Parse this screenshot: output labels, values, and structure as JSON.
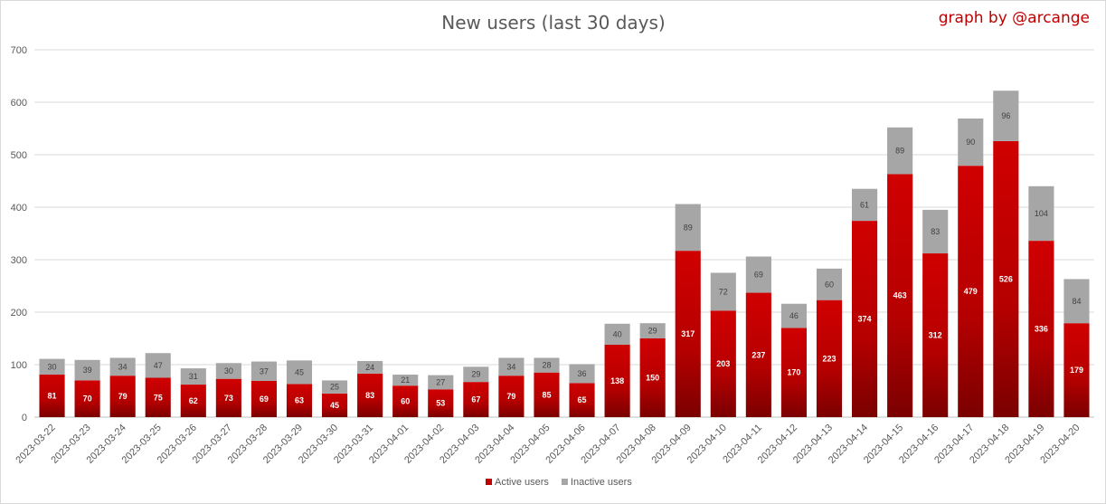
{
  "chart_data": {
    "type": "bar",
    "stacked": true,
    "title": "New users (last 30 days)",
    "credit": "graph by @arcange",
    "ylim": [
      0,
      700
    ],
    "yticks": [
      0,
      100,
      200,
      300,
      400,
      500,
      600,
      700
    ],
    "grid": true,
    "legend_position": "bottom",
    "categories": [
      "2023-03-22",
      "2023-03-23",
      "2023-03-24",
      "2023-03-25",
      "2023-03-26",
      "2023-03-27",
      "2023-03-28",
      "2023-03-29",
      "2023-03-30",
      "2023-03-31",
      "2023-04-01",
      "2023-04-02",
      "2023-04-03",
      "2023-04-04",
      "2023-04-05",
      "2023-04-06",
      "2023-04-07",
      "2023-04-08",
      "2023-04-09",
      "2023-04-10",
      "2023-04-11",
      "2023-04-12",
      "2023-04-13",
      "2023-04-14",
      "2023-04-15",
      "2023-04-16",
      "2023-04-17",
      "2023-04-18",
      "2023-04-19",
      "2023-04-20"
    ],
    "series": [
      {
        "name": "Active users",
        "color": "#c00000",
        "values": [
          81,
          70,
          79,
          75,
          62,
          73,
          69,
          63,
          45,
          83,
          60,
          53,
          67,
          79,
          85,
          65,
          138,
          150,
          317,
          203,
          237,
          170,
          223,
          374,
          463,
          312,
          479,
          526,
          336,
          179
        ]
      },
      {
        "name": "Inactive users",
        "color": "#a6a6a6",
        "values": [
          30,
          39,
          34,
          47,
          31,
          30,
          37,
          45,
          25,
          24,
          21,
          27,
          29,
          34,
          28,
          36,
          40,
          29,
          89,
          72,
          69,
          46,
          60,
          61,
          89,
          83,
          90,
          96,
          104,
          84
        ]
      }
    ]
  }
}
